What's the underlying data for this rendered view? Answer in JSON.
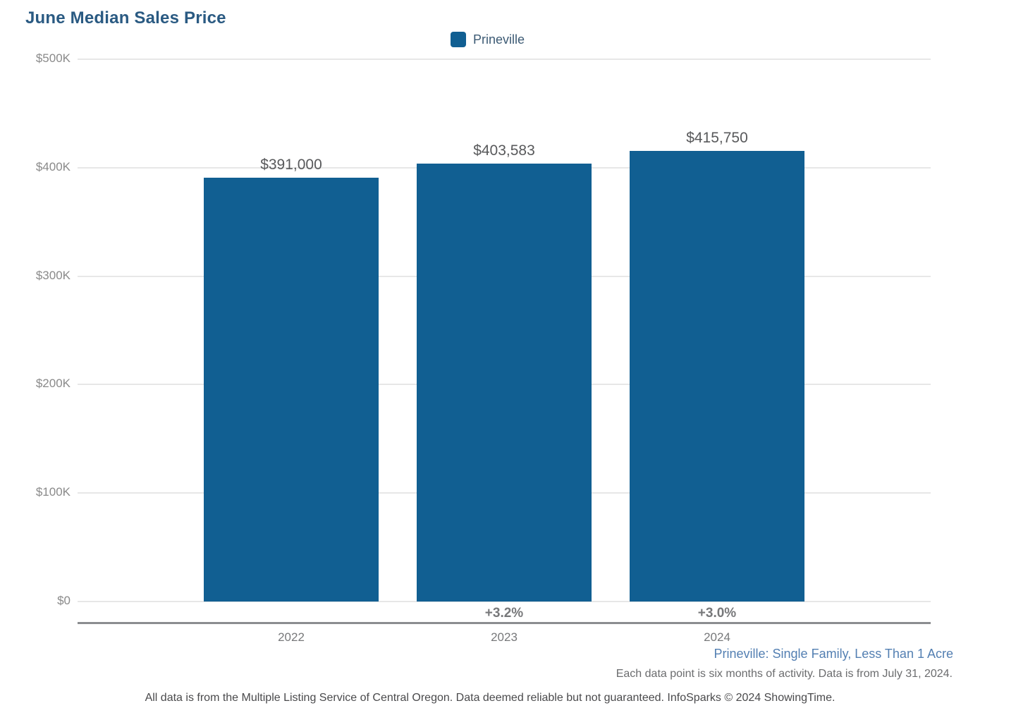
{
  "title": "June Median Sales Price",
  "legend": {
    "position": "top-center",
    "items": [
      {
        "label": "Prineville",
        "color": "#115f92"
      }
    ]
  },
  "chart_data": {
    "type": "bar",
    "title": "June Median Sales Price",
    "categories": [
      "2022",
      "2023",
      "2024"
    ],
    "series": [
      {
        "name": "Prineville",
        "color": "#115f92",
        "values": [
          391000,
          403583,
          415750
        ],
        "value_labels": [
          "$391,000",
          "$403,583",
          "$415,750"
        ],
        "change_labels": [
          "",
          "+3.2%",
          "+3.0%"
        ]
      }
    ],
    "xlabel": "",
    "ylabel": "",
    "ylim": [
      0,
      500000
    ],
    "y_ticks": [
      {
        "value": 0,
        "label": "$0"
      },
      {
        "value": 100000,
        "label": "$100K"
      },
      {
        "value": 200000,
        "label": "$200K"
      },
      {
        "value": 300000,
        "label": "$300K"
      },
      {
        "value": 400000,
        "label": "$400K"
      },
      {
        "value": 500000,
        "label": "$500K"
      }
    ],
    "grid": "horizontal",
    "legend_position": "top-center"
  },
  "footnotes": {
    "segment": "Prineville: Single Family, Less Than 1 Acre",
    "data_note": "Each data point is six months of activity. Data is from July 31, 2024.",
    "disclaimer": "All data is from the Multiple Listing Service of Central Oregon. Data deemed reliable but not guaranteed. InfoSparks © 2024 ShowingTime."
  },
  "colors": {
    "bar": "#115f92",
    "title_text": "#2a5a82",
    "legend_text": "#3c5a74",
    "axis_label": "#8a8a8a",
    "value_label": "#58595b",
    "change_label": "#77787a",
    "gridline": "#e7e7e7",
    "axis_line": "#8b8d90",
    "segment_link": "#537fb2",
    "note_text": "#6b6c6e",
    "disclaimer_text": "#4a4a4c"
  }
}
